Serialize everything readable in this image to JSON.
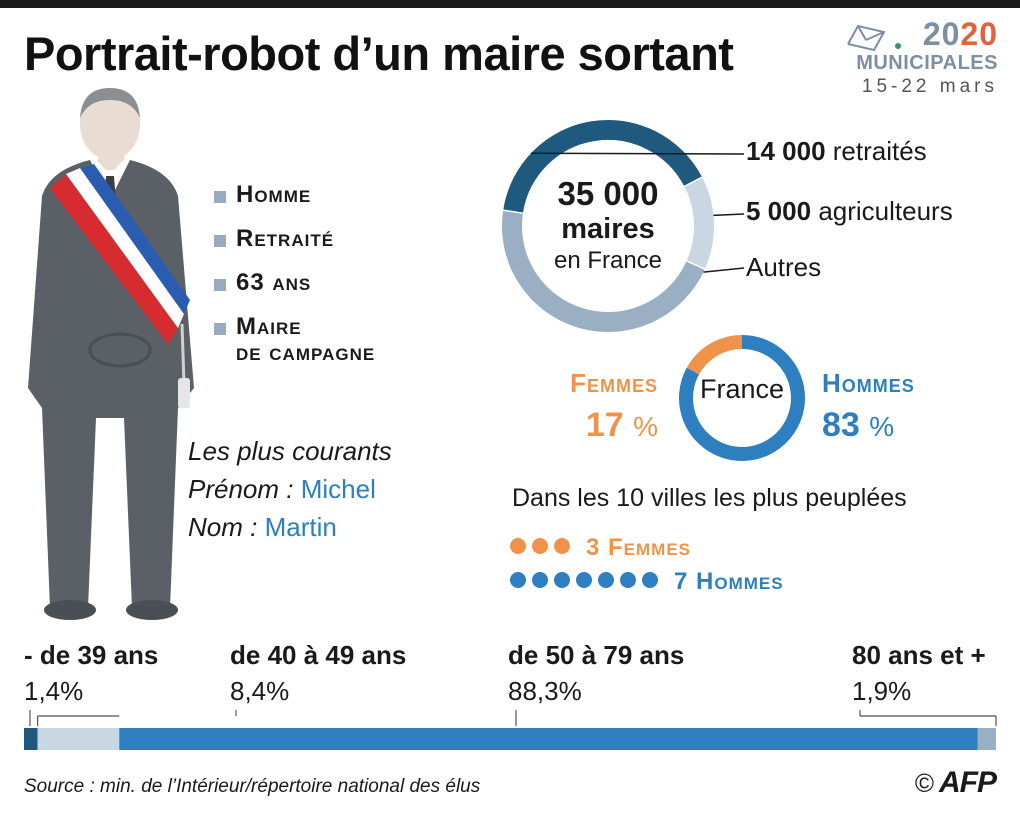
{
  "title": "Portrait-robot d’un maire sortant",
  "brand": {
    "year_a": "20",
    "year_b": "20",
    "municipales": "MUNICIPALES",
    "dates": "15-22 mars"
  },
  "profile": {
    "traits": [
      "Homme",
      "Retraité",
      "63 ans",
      "Maire",
      "de campagne"
    ],
    "common_title": "Les plus courants",
    "prenom_label": "Prénom  :",
    "prenom": "Michel",
    "nom_label": "Nom :",
    "nom": "Martin"
  },
  "colors": {
    "retired": "#1f5a7e",
    "farmers": "#c9d7e3",
    "others": "#9aaec4",
    "women": "#f0934a",
    "men": "#2d7fc0",
    "age_under39": "#1f5a7e",
    "age_40_49": "#c9d7e3",
    "age_50_79": "#2d7fc0",
    "age_80plus": "#9aaec4"
  },
  "chart_data": [
    {
      "type": "pie",
      "title": "35 000 maires en France",
      "center_big": "35 000",
      "center_mid": "maires",
      "center_small": "en France",
      "slices": [
        {
          "value_label": "14 000",
          "label": "retraités",
          "value": 14000
        },
        {
          "value_label": "5 000",
          "label": "agriculteurs",
          "value": 5000
        },
        {
          "value_label": "",
          "label": "Autres",
          "value": 16000
        }
      ]
    },
    {
      "type": "pie",
      "center": "France",
      "slices": [
        {
          "label": "Femmes",
          "value": 17,
          "display": "17"
        },
        {
          "label": "Hommes",
          "value": 83,
          "display": "83"
        }
      ],
      "unit": "%"
    },
    {
      "type": "bar",
      "title": "Dans les 10 villes les plus peuplées",
      "categories": [
        "Femmes",
        "Hommes"
      ],
      "values": [
        3,
        7
      ],
      "labels": [
        "3 Femmes",
        "7 Hommes"
      ]
    },
    {
      "type": "bar",
      "stacked": true,
      "categories": [
        "- de 39 ans",
        "de 40 à 49 ans",
        "de 50 à 79 ans",
        "80 ans et +"
      ],
      "values": [
        1.4,
        8.4,
        88.3,
        1.9
      ],
      "value_labels": [
        "1,4%",
        "8,4%",
        "88,3%",
        "1,9%"
      ]
    }
  ],
  "footer": {
    "source": "Source : min. de l’Intérieur/répertoire national des élus",
    "copyright": "©",
    "agency": "AFP"
  }
}
